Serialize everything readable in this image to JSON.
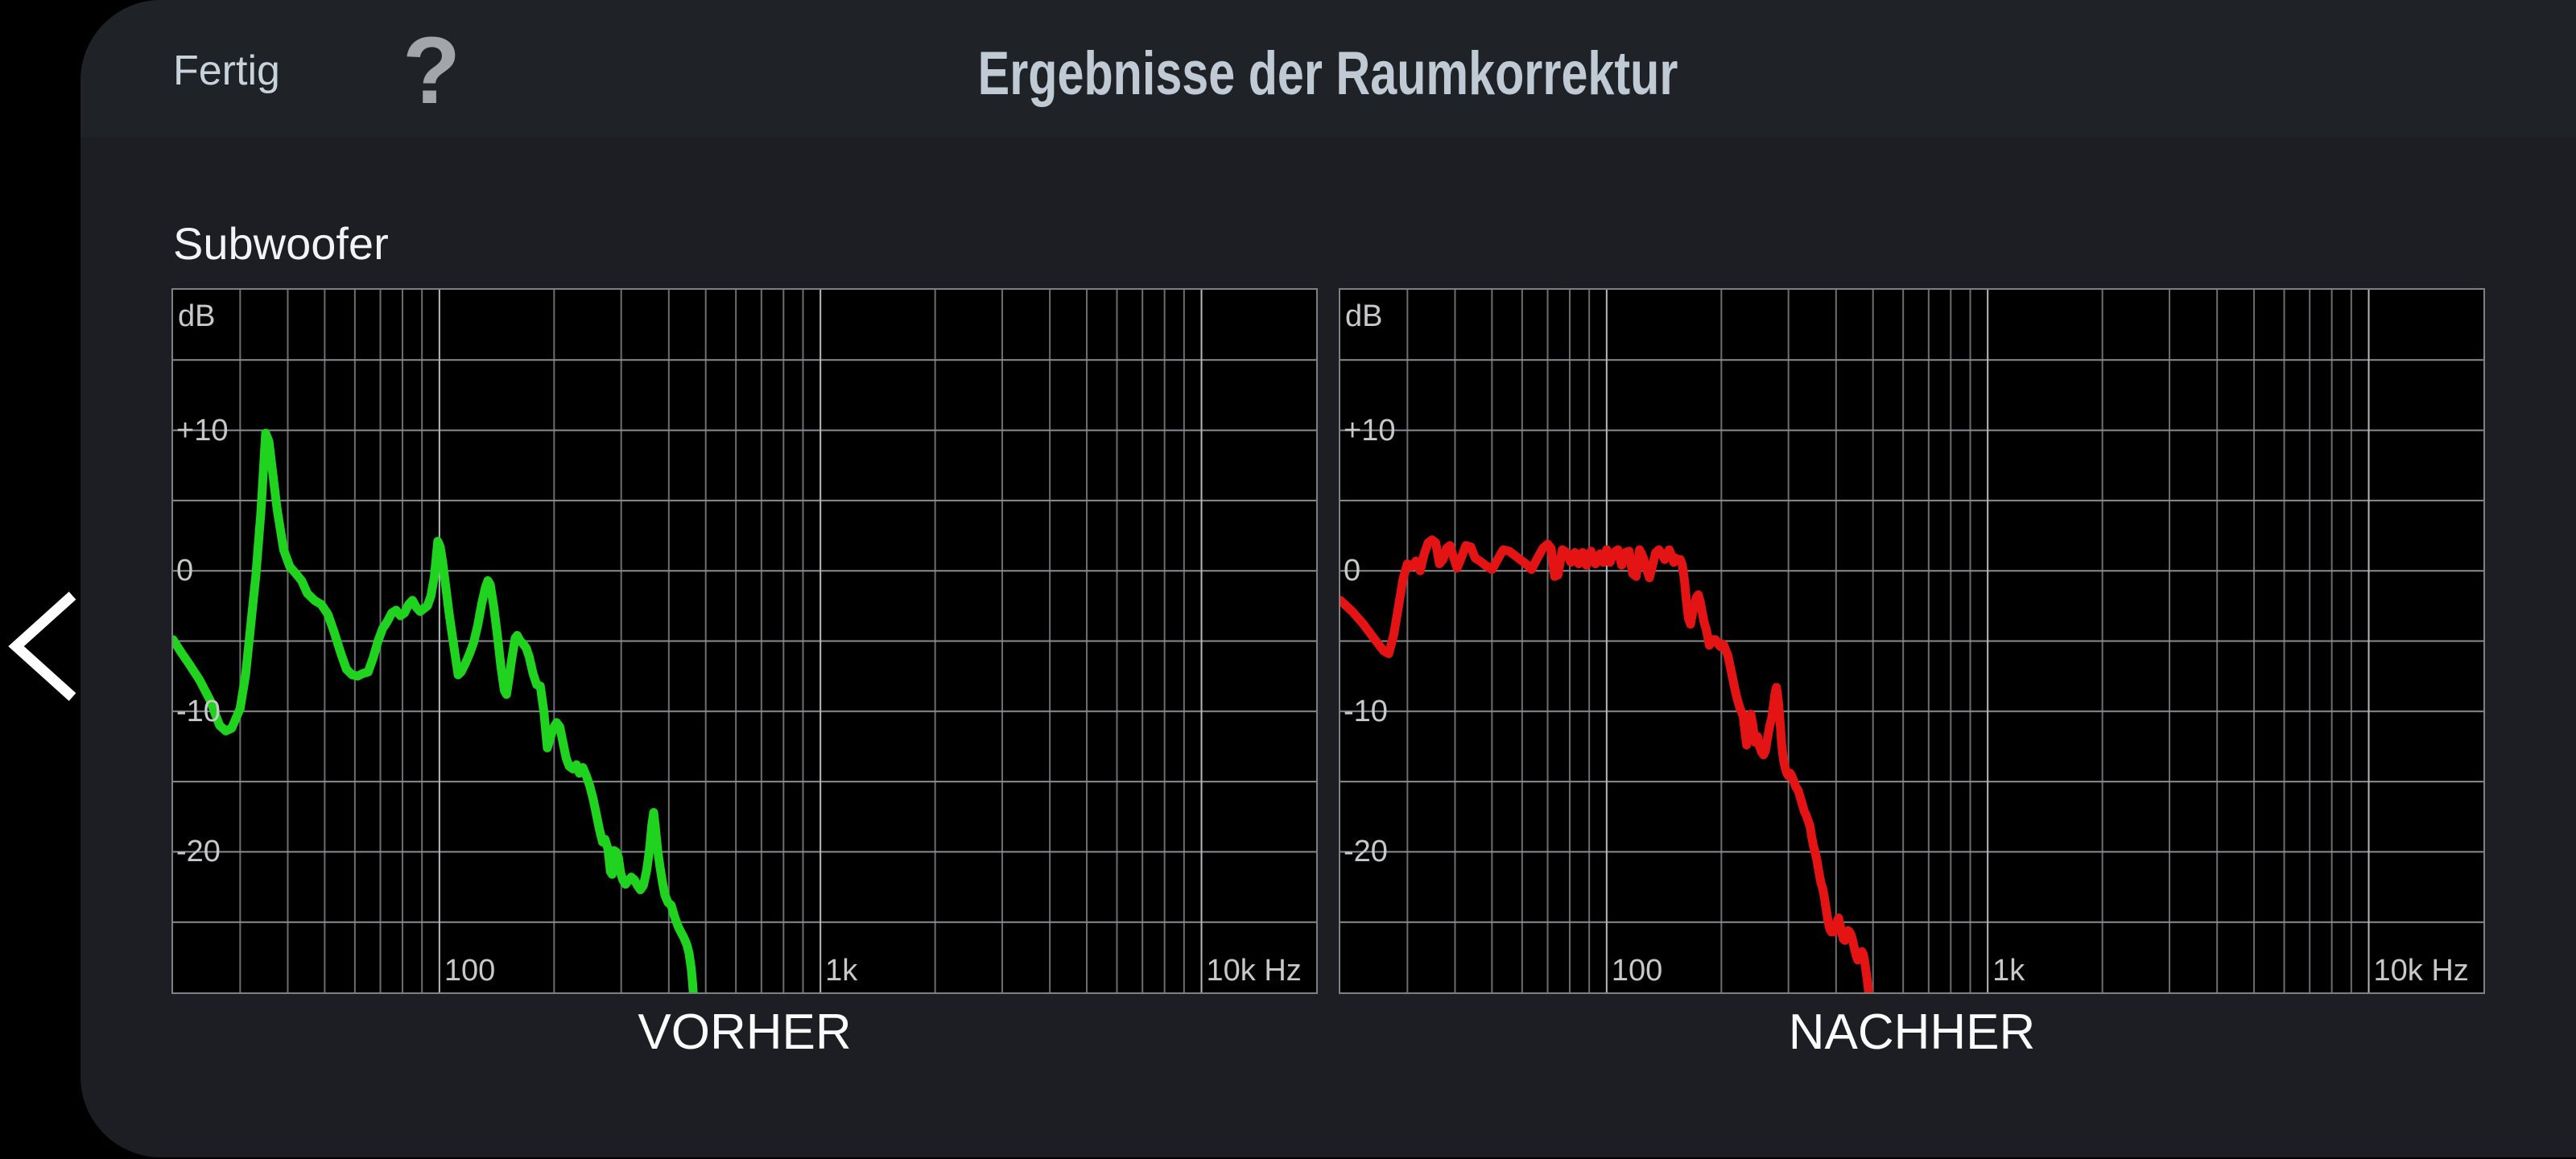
{
  "header": {
    "done_label": "Fertig",
    "help_label": "?",
    "title": "Ergebnisse der Raumkorrektur"
  },
  "section": {
    "speaker_label": "Subwoofer"
  },
  "colors": {
    "background": "#000000",
    "panel": "#1c1e23",
    "topbar": "#1f2227",
    "plot_background": "#000000",
    "grid_minor": "#6b6e71",
    "grid_major": "#b6b9bb",
    "grid_horizontal": "#8a8d90",
    "axis_text": "#c6c8ca",
    "before_curve": "#1fd31f",
    "after_curve": "#e41414",
    "back_icon": "#ffffff"
  },
  "axis": {
    "unit_label": "dB",
    "y_ticks": [
      {
        "v": 10,
        "t": "+10"
      },
      {
        "v": 0,
        "t": "0"
      },
      {
        "v": -10,
        "t": "-10"
      },
      {
        "v": -20,
        "t": "-20"
      }
    ],
    "x_ticks": [
      {
        "f": 100,
        "t": "100"
      },
      {
        "f": 1000,
        "t": "1k"
      },
      {
        "f": 10000,
        "t": "10k Hz"
      }
    ],
    "ylim": [
      -30,
      20
    ],
    "xlim": [
      20,
      20000
    ],
    "y_grid_step": 5,
    "x_scale": "log"
  },
  "chart_data": [
    {
      "type": "line",
      "title": "VORHER",
      "color": "#1fd31f",
      "xlabel": "Hz",
      "ylabel": "dB",
      "points": [
        [
          20,
          -4.9
        ],
        [
          21,
          -5.8
        ],
        [
          22,
          -6.6
        ],
        [
          23.5,
          -7.8
        ],
        [
          25,
          -9.2
        ],
        [
          26.5,
          -11.0
        ],
        [
          27.5,
          -11.4
        ],
        [
          28.5,
          -11.2
        ],
        [
          30,
          -9.8
        ],
        [
          31,
          -7.4
        ],
        [
          32,
          -3.8
        ],
        [
          33,
          -0.3
        ],
        [
          34,
          4.2
        ],
        [
          35,
          9.8
        ],
        [
          35.7,
          9.2
        ],
        [
          36.5,
          7.0
        ],
        [
          37.5,
          4.4
        ],
        [
          39,
          1.5
        ],
        [
          40.5,
          0.3
        ],
        [
          42,
          -0.2
        ],
        [
          43.5,
          -0.7
        ],
        [
          45,
          -1.6
        ],
        [
          47,
          -2.1
        ],
        [
          49,
          -2.4
        ],
        [
          51,
          -3.1
        ],
        [
          53,
          -4.4
        ],
        [
          55,
          -5.8
        ],
        [
          57,
          -7.0
        ],
        [
          59,
          -7.4
        ],
        [
          61,
          -7.5
        ],
        [
          63,
          -7.3
        ],
        [
          65,
          -7.2
        ],
        [
          67,
          -6.2
        ],
        [
          69,
          -5.0
        ],
        [
          71,
          -4.1
        ],
        [
          73,
          -3.6
        ],
        [
          75,
          -3.0
        ],
        [
          77,
          -2.8
        ],
        [
          79,
          -3.2
        ],
        [
          81,
          -3.0
        ],
        [
          83,
          -2.4
        ],
        [
          85,
          -2.1
        ],
        [
          87,
          -2.6
        ],
        [
          89,
          -2.9
        ],
        [
          91,
          -2.7
        ],
        [
          93,
          -2.5
        ],
        [
          95,
          -1.8
        ],
        [
          97,
          -0.4
        ],
        [
          99,
          2.1
        ],
        [
          100.5,
          1.7
        ],
        [
          102,
          0.6
        ],
        [
          104,
          -1.2
        ],
        [
          106,
          -3.0
        ],
        [
          109,
          -5.3
        ],
        [
          112,
          -7.4
        ],
        [
          114,
          -7.2
        ],
        [
          117,
          -6.6
        ],
        [
          120,
          -5.9
        ],
        [
          123,
          -5.1
        ],
        [
          126,
          -3.9
        ],
        [
          129,
          -2.4
        ],
        [
          132,
          -1.2
        ],
        [
          134,
          -0.7
        ],
        [
          136,
          -1.0
        ],
        [
          139,
          -2.6
        ],
        [
          142,
          -4.6
        ],
        [
          145,
          -6.8
        ],
        [
          148,
          -8.5
        ],
        [
          150,
          -8.8
        ],
        [
          152,
          -7.8
        ],
        [
          155,
          -6.2
        ],
        [
          158,
          -4.8
        ],
        [
          160,
          -4.6
        ],
        [
          163,
          -5.0
        ],
        [
          166,
          -5.2
        ],
        [
          169,
          -5.5
        ],
        [
          172,
          -6.1
        ],
        [
          176,
          -7.3
        ],
        [
          180,
          -8.1
        ],
        [
          184,
          -8.2
        ],
        [
          188,
          -10.0
        ],
        [
          192,
          -12.6
        ],
        [
          195,
          -12.0
        ],
        [
          199,
          -11.2
        ],
        [
          203,
          -10.8
        ],
        [
          207,
          -11.1
        ],
        [
          211,
          -12.2
        ],
        [
          215,
          -13.3
        ],
        [
          219,
          -13.9
        ],
        [
          224,
          -14.1
        ],
        [
          229,
          -13.8
        ],
        [
          233,
          -14.4
        ],
        [
          238,
          -14.0
        ],
        [
          243,
          -14.6
        ],
        [
          248,
          -15.3
        ],
        [
          253,
          -16.2
        ],
        [
          258,
          -17.3
        ],
        [
          263,
          -18.4
        ],
        [
          268,
          -19.3
        ],
        [
          272,
          -19.1
        ],
        [
          277,
          -19.8
        ],
        [
          281,
          -21.4
        ],
        [
          284,
          -21.6
        ],
        [
          287,
          -19.9
        ],
        [
          291,
          -20.0
        ],
        [
          295,
          -20.4
        ],
        [
          299,
          -21.5
        ],
        [
          303,
          -22.0
        ],
        [
          308,
          -22.3
        ],
        [
          314,
          -22.0
        ],
        [
          319,
          -21.8
        ],
        [
          325,
          -22.0
        ],
        [
          331,
          -22.4
        ],
        [
          337,
          -22.7
        ],
        [
          343,
          -22.4
        ],
        [
          350,
          -21.3
        ],
        [
          356,
          -19.8
        ],
        [
          361,
          -18.1
        ],
        [
          365,
          -17.2
        ],
        [
          369,
          -18.3
        ],
        [
          374,
          -19.9
        ],
        [
          379,
          -21.0
        ],
        [
          385,
          -22.2
        ],
        [
          391,
          -23.1
        ],
        [
          398,
          -23.6
        ],
        [
          406,
          -23.8
        ],
        [
          414,
          -24.6
        ],
        [
          423,
          -25.3
        ],
        [
          430,
          -25.7
        ],
        [
          438,
          -26.1
        ],
        [
          446,
          -26.6
        ],
        [
          452,
          -27.2
        ],
        [
          458,
          -28.3
        ],
        [
          462,
          -29.4
        ],
        [
          466,
          -30.8
        ]
      ]
    },
    {
      "type": "line",
      "title": "NACHHER",
      "color": "#e41414",
      "xlabel": "Hz",
      "ylabel": "dB",
      "points": [
        [
          20,
          -2.1
        ],
        [
          21.5,
          -2.9
        ],
        [
          23,
          -3.8
        ],
        [
          24.5,
          -4.8
        ],
        [
          26,
          -5.7
        ],
        [
          26.8,
          -5.9
        ],
        [
          27.6,
          -4.6
        ],
        [
          28.4,
          -2.6
        ],
        [
          29.2,
          -0.6
        ],
        [
          30,
          0.5
        ],
        [
          30.8,
          0.3
        ],
        [
          31.6,
          0.7
        ],
        [
          32.4,
          0.0
        ],
        [
          33.2,
          1.2
        ],
        [
          34,
          2.0
        ],
        [
          34.8,
          2.2
        ],
        [
          35.6,
          2.0
        ],
        [
          36.4,
          0.5
        ],
        [
          37.2,
          0.8
        ],
        [
          38,
          1.6
        ],
        [
          38.8,
          1.8
        ],
        [
          39.6,
          1.0
        ],
        [
          40.5,
          0.2
        ],
        [
          41.5,
          0.9
        ],
        [
          42.7,
          1.8
        ],
        [
          44,
          1.7
        ],
        [
          45.2,
          0.9
        ],
        [
          46.5,
          0.7
        ],
        [
          48,
          0.4
        ],
        [
          50,
          0.1
        ],
        [
          51.5,
          0.7
        ],
        [
          53.5,
          1.5
        ],
        [
          55.5,
          1.4
        ],
        [
          58,
          1.0
        ],
        [
          60,
          0.7
        ],
        [
          62,
          0.4
        ],
        [
          63.5,
          0.1
        ],
        [
          65.5,
          0.8
        ],
        [
          68,
          1.6
        ],
        [
          70,
          1.9
        ],
        [
          71.5,
          1.6
        ],
        [
          73,
          -0.4
        ],
        [
          74.5,
          -0.3
        ],
        [
          76.5,
          1.5
        ],
        [
          78.5,
          1.3
        ],
        [
          80.5,
          0.6
        ],
        [
          82.5,
          1.3
        ],
        [
          84.5,
          0.5
        ],
        [
          86.5,
          1.3
        ],
        [
          88.5,
          0.4
        ],
        [
          91,
          1.4
        ],
        [
          93.5,
          0.5
        ],
        [
          96,
          1.2
        ],
        [
          98,
          0.6
        ],
        [
          100,
          1.5
        ],
        [
          102,
          0.6
        ],
        [
          104.5,
          1.3
        ],
        [
          107,
          1.5
        ],
        [
          109.5,
          0.4
        ],
        [
          112,
          1.3
        ],
        [
          114.5,
          1.4
        ],
        [
          117,
          -0.2
        ],
        [
          119.5,
          -0.4
        ],
        [
          122,
          1.5
        ],
        [
          124.5,
          1.0
        ],
        [
          127,
          0.2
        ],
        [
          129.5,
          -0.5
        ],
        [
          132,
          0.4
        ],
        [
          134.5,
          1.3
        ],
        [
          137,
          1.5
        ],
        [
          139.5,
          1.2
        ],
        [
          142,
          0.8
        ],
        [
          144,
          1.2
        ],
        [
          146,
          1.5
        ],
        [
          148,
          1.1
        ],
        [
          150,
          0.6
        ],
        [
          152,
          0.9
        ],
        [
          154,
          0.7
        ],
        [
          156,
          0.8
        ],
        [
          158,
          0.4
        ],
        [
          160,
          -0.7
        ],
        [
          162,
          -2.2
        ],
        [
          164,
          -3.4
        ],
        [
          166,
          -3.8
        ],
        [
          168,
          -3.0
        ],
        [
          170,
          -2.4
        ],
        [
          172,
          -1.9
        ],
        [
          174,
          -1.7
        ],
        [
          176,
          -2.2
        ],
        [
          178,
          -2.9
        ],
        [
          180,
          -3.6
        ],
        [
          183,
          -4.3
        ],
        [
          186,
          -5.3
        ],
        [
          188,
          -5.1
        ],
        [
          190,
          -4.9
        ],
        [
          193,
          -4.9
        ],
        [
          196,
          -5.2
        ],
        [
          199,
          -5.4
        ],
        [
          201,
          -5.2
        ],
        [
          203,
          -5.3
        ],
        [
          205,
          -5.6
        ],
        [
          208,
          -6.0
        ],
        [
          211,
          -6.8
        ],
        [
          214,
          -7.6
        ],
        [
          217,
          -8.4
        ],
        [
          220,
          -9.1
        ],
        [
          224,
          -9.8
        ],
        [
          228,
          -10.3
        ],
        [
          231,
          -11.6
        ],
        [
          233,
          -12.4
        ],
        [
          236,
          -11.4
        ],
        [
          239,
          -10.2
        ],
        [
          242,
          -11.0
        ],
        [
          245,
          -12.2
        ],
        [
          247,
          -12.0
        ],
        [
          249,
          -11.8
        ],
        [
          252,
          -12.5
        ],
        [
          255,
          -12.9
        ],
        [
          258,
          -13.1
        ],
        [
          261,
          -12.8
        ],
        [
          264,
          -12.0
        ],
        [
          268,
          -11.0
        ],
        [
          271,
          -10.5
        ],
        [
          274,
          -9.6
        ],
        [
          277,
          -8.6
        ],
        [
          279,
          -8.3
        ],
        [
          282,
          -9.2
        ],
        [
          285,
          -10.6
        ],
        [
          288,
          -12.4
        ],
        [
          291,
          -13.4
        ],
        [
          294,
          -14.0
        ],
        [
          297,
          -14.4
        ],
        [
          300,
          -14.6
        ],
        [
          303,
          -14.4
        ],
        [
          306,
          -14.6
        ],
        [
          310,
          -15.0
        ],
        [
          314,
          -15.4
        ],
        [
          318,
          -15.6
        ],
        [
          322,
          -16.1
        ],
        [
          326,
          -16.6
        ],
        [
          330,
          -17.1
        ],
        [
          334,
          -17.4
        ],
        [
          338,
          -17.8
        ],
        [
          342,
          -18.2
        ],
        [
          345,
          -18.9
        ],
        [
          349,
          -19.6
        ],
        [
          353,
          -20.1
        ],
        [
          357,
          -20.7
        ],
        [
          361,
          -21.5
        ],
        [
          365,
          -22.2
        ],
        [
          369,
          -22.6
        ],
        [
          373,
          -23.3
        ],
        [
          377,
          -24.1
        ],
        [
          381,
          -24.9
        ],
        [
          385,
          -25.5
        ],
        [
          389,
          -25.7
        ],
        [
          394,
          -25.7
        ],
        [
          398,
          -25.5
        ],
        [
          402,
          -25.0
        ],
        [
          406,
          -24.7
        ],
        [
          410,
          -25.2
        ],
        [
          414,
          -25.8
        ],
        [
          418,
          -26.2
        ],
        [
          422,
          -26.3
        ],
        [
          426,
          -25.9
        ],
        [
          430,
          -25.6
        ],
        [
          434,
          -25.7
        ],
        [
          438,
          -25.9
        ],
        [
          443,
          -26.4
        ],
        [
          448,
          -27.0
        ],
        [
          452,
          -27.4
        ],
        [
          456,
          -27.7
        ],
        [
          460,
          -27.6
        ],
        [
          464,
          -27.3
        ],
        [
          468,
          -27.1
        ],
        [
          472,
          -27.3
        ],
        [
          476,
          -27.9
        ],
        [
          480,
          -28.6
        ],
        [
          484,
          -29.3
        ],
        [
          488,
          -30.2
        ],
        [
          492,
          -30.8
        ]
      ]
    }
  ]
}
